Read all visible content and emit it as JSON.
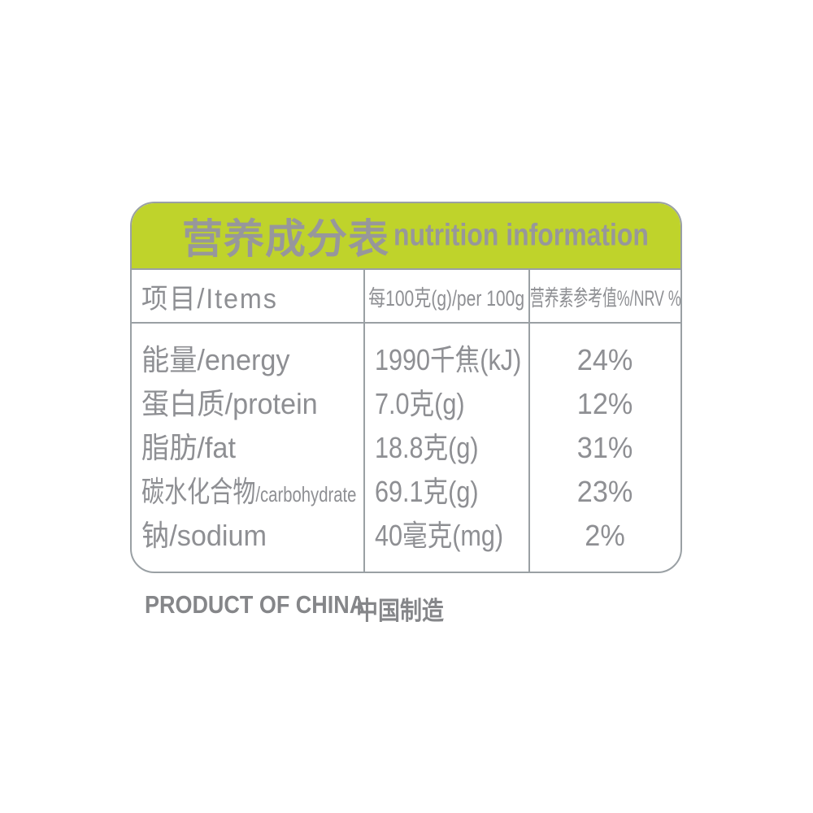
{
  "label": {
    "title": {
      "zh": "营养成分表",
      "en": "nutrition information"
    },
    "header": {
      "items": "项目/Items",
      "per100g": "每100克(g)/per 100g",
      "nrv": "营养素参考值%/NRV %"
    },
    "rows": [
      {
        "name_zh": "能量",
        "name_en": "/energy",
        "amount": "1990千焦(kJ)",
        "nrv": "24%"
      },
      {
        "name_zh": "蛋白质",
        "name_en": "/protein",
        "amount": "7.0克(g)",
        "nrv": "12%"
      },
      {
        "name_zh": "脂肪",
        "name_en": "/fat",
        "amount": "18.8克(g)",
        "nrv": "31%"
      },
      {
        "name_zh": "碳水化合物",
        "name_en": "/carbohydrate",
        "amount": "69.1克(g)",
        "nrv": "23%"
      },
      {
        "name_zh": "钠",
        "name_en": "/sodium",
        "amount": "40毫克(mg)",
        "nrv": "2%"
      }
    ]
  },
  "footer": {
    "en": "PRODUCT OF CHINA",
    "zh": "中国制造"
  },
  "colors": {
    "band": "#bfd32b",
    "border": "#9aa0a4",
    "text": "#8e8f93",
    "title": "#97979b",
    "footer": "#858689"
  }
}
